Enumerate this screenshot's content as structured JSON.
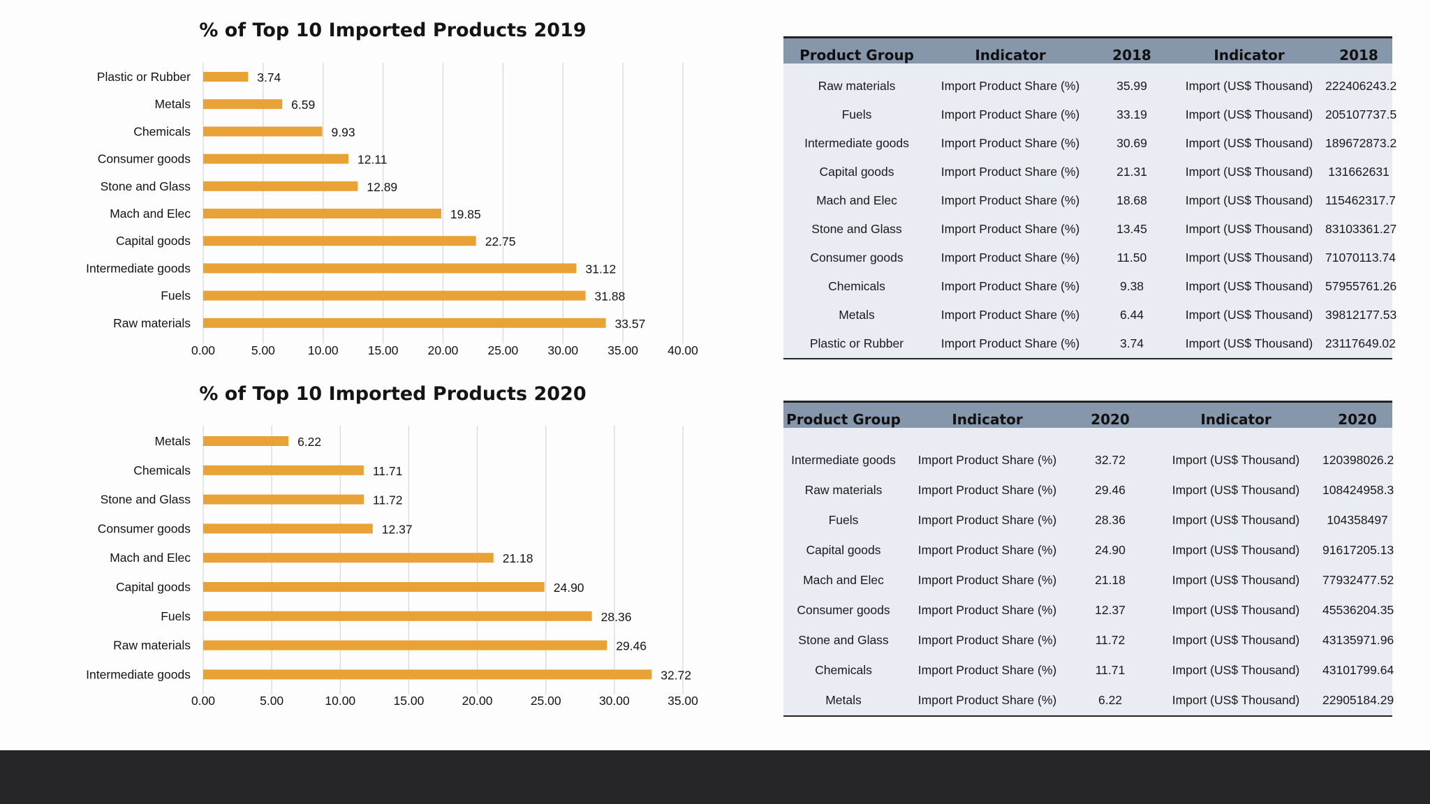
{
  "colors": {
    "bar": "#e8a235",
    "grid": "#d9d9d9",
    "table_header": "#8696ab",
    "table_body": "#e9ecf3",
    "footer": "#262628"
  },
  "chart_data": [
    {
      "type": "bar",
      "orientation": "horizontal",
      "title": "% of Top 10 Imported Products 2019",
      "categories": [
        "Plastic or Rubber",
        "Metals",
        "Chemicals",
        "Consumer goods",
        "Stone and Glass",
        "Mach and Elec",
        "Capital goods",
        "Intermediate goods",
        "Fuels",
        "Raw materials"
      ],
      "values": [
        3.74,
        6.59,
        9.93,
        12.11,
        12.89,
        19.85,
        22.75,
        31.12,
        31.88,
        33.57
      ],
      "value_labels": [
        "3.74",
        "6.59",
        "9.93",
        "12.11",
        "12.89",
        "19.85",
        "22.75",
        "31.12",
        "31.88",
        "33.57"
      ],
      "xlim": [
        0,
        40
      ],
      "xticks": [
        "0.00",
        "5.00",
        "10.00",
        "15.00",
        "20.00",
        "25.00",
        "30.00",
        "35.00",
        "40.00"
      ],
      "grid": true,
      "legend": "none"
    },
    {
      "type": "bar",
      "orientation": "horizontal",
      "title": "% of Top 10 Imported Products 2020",
      "categories": [
        "Metals",
        "Chemicals",
        "Stone and Glass",
        "Consumer goods",
        "Mach and Elec",
        "Capital goods",
        "Fuels",
        "Raw materials",
        "Intermediate goods"
      ],
      "values": [
        6.22,
        11.71,
        11.72,
        12.37,
        21.18,
        24.9,
        28.36,
        29.46,
        32.72
      ],
      "value_labels": [
        "6.22",
        "11.71",
        "11.72",
        "12.37",
        "21.18",
        "24.90",
        "28.36",
        "29.46",
        "32.72"
      ],
      "xlim": [
        0,
        35
      ],
      "xticks": [
        "0.00",
        "5.00",
        "10.00",
        "15.00",
        "20.00",
        "25.00",
        "30.00",
        "35.00"
      ],
      "grid": true,
      "legend": "none"
    }
  ],
  "tables": [
    {
      "headers": [
        "Product Group",
        "Indicator",
        "2018",
        "Indicator",
        "2018"
      ],
      "rows": [
        [
          "Raw materials",
          "Import Product Share (%)",
          "35.99",
          "Import (US$ Thousand)",
          "222406243.2"
        ],
        [
          "Fuels",
          "Import Product Share (%)",
          "33.19",
          "Import (US$ Thousand)",
          "205107737.5"
        ],
        [
          "Intermediate goods",
          "Import Product Share (%)",
          "30.69",
          "Import (US$ Thousand)",
          "189672873.2"
        ],
        [
          "Capital goods",
          "Import Product Share (%)",
          "21.31",
          "Import (US$ Thousand)",
          "131662631"
        ],
        [
          "Mach and Elec",
          "Import Product Share (%)",
          "18.68",
          "Import (US$ Thousand)",
          "115462317.7"
        ],
        [
          "Stone and Glass",
          "Import Product Share (%)",
          "13.45",
          "Import (US$ Thousand)",
          "83103361.27"
        ],
        [
          "Consumer goods",
          "Import Product Share (%)",
          "11.50",
          "Import (US$ Thousand)",
          "71070113.74"
        ],
        [
          "Chemicals",
          "Import Product Share (%)",
          "9.38",
          "Import (US$ Thousand)",
          "57955761.26"
        ],
        [
          "Metals",
          "Import Product Share (%)",
          "6.44",
          "Import (US$ Thousand)",
          "39812177.53"
        ],
        [
          "Plastic or Rubber",
          "Import Product Share (%)",
          "3.74",
          "Import (US$ Thousand)",
          "23117649.02"
        ]
      ]
    },
    {
      "headers": [
        "Product Group",
        "Indicator",
        "2020",
        "Indicator",
        "2020"
      ],
      "rows": [
        [
          "Intermediate goods",
          "Import Product Share (%)",
          "32.72",
          "Import (US$ Thousand)",
          "120398026.2"
        ],
        [
          "Raw materials",
          "Import Product Share (%)",
          "29.46",
          "Import (US$ Thousand)",
          "108424958.3"
        ],
        [
          "Fuels",
          "Import Product Share (%)",
          "28.36",
          "Import (US$ Thousand)",
          "104358497"
        ],
        [
          "Capital goods",
          "Import Product Share (%)",
          "24.90",
          "Import (US$ Thousand)",
          "91617205.13"
        ],
        [
          "Mach and Elec",
          "Import Product Share (%)",
          "21.18",
          "Import (US$ Thousand)",
          "77932477.52"
        ],
        [
          "Consumer goods",
          "Import Product Share (%)",
          "12.37",
          "Import (US$ Thousand)",
          "45536204.35"
        ],
        [
          "Stone and Glass",
          "Import Product Share (%)",
          "11.72",
          "Import (US$ Thousand)",
          "43135971.96"
        ],
        [
          "Chemicals",
          "Import Product Share (%)",
          "11.71",
          "Import (US$ Thousand)",
          "43101799.64"
        ],
        [
          "Metals",
          "Import Product Share (%)",
          "6.22",
          "Import (US$ Thousand)",
          "22905184.29"
        ]
      ]
    }
  ]
}
